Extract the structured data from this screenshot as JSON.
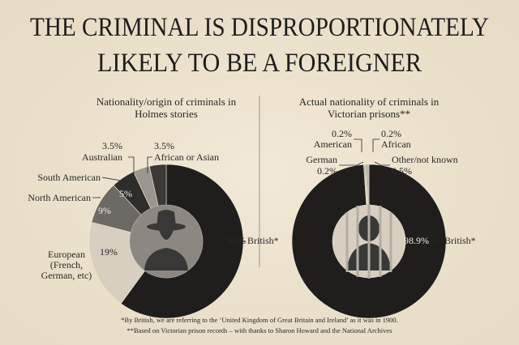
{
  "title": [
    "THE CRIMINAL IS DISPROPORTIONATELY",
    "LIKELY TO BE A FOREIGNER"
  ],
  "chart_data": [
    {
      "type": "pie",
      "title": "Nationality/origin of criminals in Holmes stories",
      "categories": [
        "British*",
        "European (French, German, etc)",
        "North American",
        "South American",
        "Australian",
        "African or Asian"
      ],
      "values": [
        60,
        19,
        9,
        5,
        3.5,
        3.5
      ],
      "value_labels": [
        "60%",
        "19%",
        "9%",
        "5%",
        "3.5%",
        "3.5%"
      ],
      "colors": [
        "#1f1e1d",
        "#d8cfc1",
        "#6d6964",
        "#2f2d2b",
        "#9b968f",
        "#3b3936"
      ]
    },
    {
      "type": "pie",
      "title": "Actual nationality of criminals in Victorian prisons**",
      "categories": [
        "British*",
        "German",
        "American",
        "African",
        "Other/not known"
      ],
      "values": [
        98.9,
        0.2,
        0.2,
        0.2,
        0.5
      ],
      "value_labels": [
        "98.9%",
        "0.2%",
        "0.2%",
        "0.2%",
        "0.5%"
      ],
      "colors": [
        "#1f1e1d",
        "#8d8882",
        "#c9c1b4",
        "#55514c",
        "#b3ada4"
      ]
    }
  ],
  "footnotes": [
    "*By British, we are referring to the ‘United Kingdom of Great Britain and Ireland’ as it was in 1900.",
    "**Based on Victorian prison records – with thanks to Sharon Howard and the National Archives"
  ]
}
